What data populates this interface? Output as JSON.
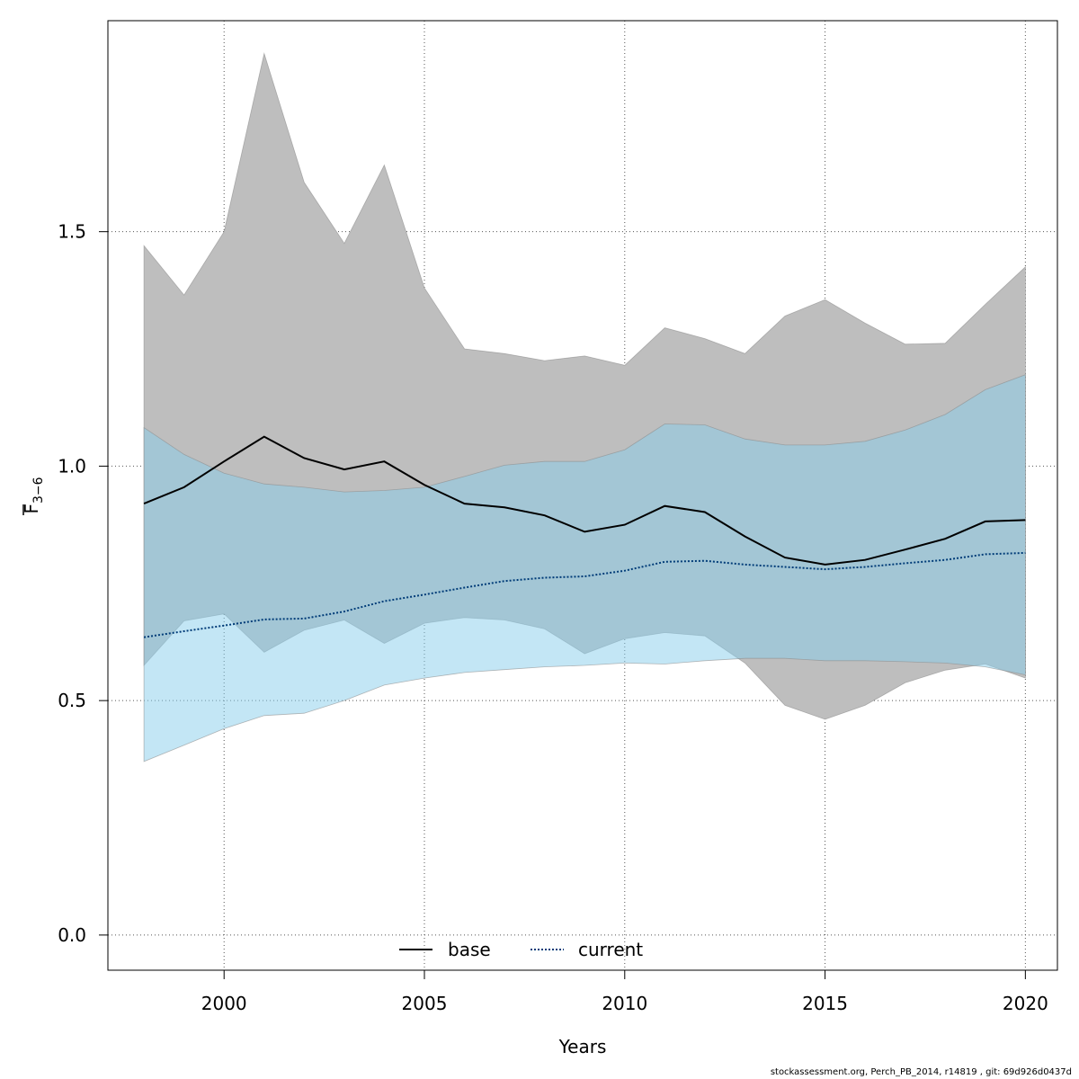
{
  "chart_data": {
    "type": "area",
    "x": [
      1998,
      1999,
      2000,
      2001,
      2002,
      2003,
      2004,
      2005,
      2006,
      2007,
      2008,
      2009,
      2010,
      2011,
      2012,
      2013,
      2014,
      2015,
      2016,
      2017,
      2018,
      2019,
      2020
    ],
    "xlabel": "Years",
    "ylabel": "F̄3−6",
    "ylabel_main": "F",
    "ylabel_sub": "3−6",
    "xlim": [
      1997.1,
      2020.8
    ],
    "ylim": [
      -0.075,
      1.95
    ],
    "xticks": [
      "2000",
      "2005",
      "2010",
      "2015",
      "2020"
    ],
    "xtick_values": [
      2000,
      2005,
      2010,
      2015,
      2020
    ],
    "yticks": [
      "0.0",
      "0.5",
      "1.0",
      "1.5"
    ],
    "ytick_values": [
      0,
      0.5,
      1.0,
      1.5
    ],
    "grid": true,
    "legend_position": "bottom-center",
    "series": [
      {
        "name": "base",
        "color": "#000000",
        "band_color": "#bebebe",
        "dash": "solid",
        "values": [
          0.92,
          0.955,
          1.01,
          1.063,
          1.017,
          0.993,
          1.01,
          0.96,
          0.92,
          0.912,
          0.895,
          0.86,
          0.875,
          0.915,
          0.902,
          0.85,
          0.805,
          0.79,
          0.8,
          0.822,
          0.845,
          0.882,
          0.885
        ],
        "lower": [
          0.575,
          0.67,
          0.685,
          0.603,
          0.65,
          0.672,
          0.622,
          0.665,
          0.677,
          0.672,
          0.653,
          0.6,
          0.632,
          0.645,
          0.638,
          0.58,
          0.49,
          0.46,
          0.49,
          0.538,
          0.565,
          0.578,
          0.548
        ],
        "upper": [
          1.47,
          1.365,
          1.5,
          1.88,
          1.605,
          1.475,
          1.642,
          1.38,
          1.25,
          1.24,
          1.225,
          1.235,
          1.215,
          1.295,
          1.272,
          1.24,
          1.32,
          1.355,
          1.305,
          1.26,
          1.262,
          1.345,
          1.425
        ]
      },
      {
        "name": "current",
        "color": "#003c78",
        "band_color": "#87ceeb",
        "dash": "dotted",
        "values": [
          0.635,
          0.648,
          0.66,
          0.673,
          0.675,
          0.69,
          0.712,
          0.726,
          0.741,
          0.755,
          0.762,
          0.765,
          0.777,
          0.796,
          0.798,
          0.79,
          0.785,
          0.78,
          0.785,
          0.793,
          0.8,
          0.812,
          0.815
        ],
        "lower": [
          0.37,
          0.405,
          0.44,
          0.468,
          0.473,
          0.5,
          0.533,
          0.548,
          0.56,
          0.566,
          0.572,
          0.575,
          0.58,
          0.578,
          0.585,
          0.59,
          0.59,
          0.585,
          0.585,
          0.583,
          0.58,
          0.572,
          0.555
        ],
        "upper": [
          1.082,
          1.025,
          0.985,
          0.962,
          0.955,
          0.945,
          0.948,
          0.955,
          0.978,
          1.002,
          1.01,
          1.01,
          1.035,
          1.09,
          1.088,
          1.058,
          1.045,
          1.045,
          1.053,
          1.077,
          1.11,
          1.163,
          1.195
        ]
      }
    ]
  },
  "footer": "stockassessment.org, Perch_PB_2014, r14819 , git: 69d926d0437d"
}
